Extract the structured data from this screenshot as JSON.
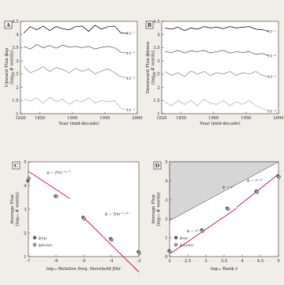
{
  "chart_data": [
    {
      "panel": "A",
      "type": "line",
      "xlabel": "Year (mid-decade)",
      "ylabel": [
        "Upward Flux ϕup",
        "(log₁₀ # words)"
      ],
      "xlim": [
        1820,
        2000
      ],
      "ylim": [
        1,
        4.5
      ],
      "xticks": [
        1820,
        1850,
        1900,
        1950,
        2000
      ],
      "yticks": [
        1,
        1.5,
        2,
        2.5,
        3,
        3.5,
        4,
        4.5
      ],
      "x": [
        1825,
        1835,
        1845,
        1855,
        1865,
        1875,
        1885,
        1895,
        1905,
        1915,
        1925,
        1935,
        1945,
        1955,
        1965,
        1975,
        1985
      ],
      "series": [
        {
          "annotation": "10⁻⁷",
          "color": "#000000",
          "values": [
            4.05,
            4.3,
            4.18,
            4.32,
            4.15,
            4.3,
            4.22,
            4.18,
            4.3,
            4.32,
            4.12,
            4.35,
            4.2,
            4.3,
            4.32,
            4.05,
            4.05
          ]
        },
        {
          "annotation": "10⁻⁶",
          "color": "#555555",
          "values": [
            3.55,
            3.45,
            3.62,
            3.5,
            3.58,
            3.48,
            3.6,
            3.52,
            3.55,
            3.5,
            3.55,
            3.45,
            3.52,
            3.55,
            3.5,
            3.32,
            3.3
          ]
        },
        {
          "annotation": "10⁻⁵",
          "color": "#8a8a8a",
          "values": [
            2.8,
            2.55,
            2.65,
            2.78,
            2.6,
            2.75,
            2.68,
            2.55,
            2.72,
            2.6,
            2.7,
            2.5,
            2.62,
            2.7,
            2.55,
            2.4,
            2.35
          ]
        },
        {
          "annotation": "10⁻⁴",
          "color": "#b0b0b0",
          "values": [
            1.55,
            1.48,
            1.6,
            1.4,
            1.62,
            1.45,
            1.55,
            1.35,
            1.5,
            1.45,
            1.6,
            1.4,
            1.5,
            1.45,
            1.5,
            1.2,
            1.15
          ]
        }
      ]
    },
    {
      "panel": "B",
      "type": "line",
      "xlabel": "Year (mid-decade)",
      "ylabel": [
        "Downward Flux ϕdown",
        "(log₁₀ # words)"
      ],
      "xlim": [
        1820,
        2000
      ],
      "ylim": [
        1,
        4.5
      ],
      "xticks": [
        1820,
        1850,
        1900,
        1950,
        2000
      ],
      "yticks": [
        1,
        1.5,
        2,
        2.5,
        3,
        3.5,
        4,
        4.5
      ],
      "x": [
        1825,
        1835,
        1845,
        1855,
        1865,
        1875,
        1885,
        1895,
        1905,
        1915,
        1925,
        1935,
        1945,
        1955,
        1965,
        1975,
        1985
      ],
      "series": [
        {
          "annotation": "10⁻⁷",
          "color": "#000000",
          "values": [
            4.25,
            4.2,
            4.28,
            4.15,
            4.25,
            4.2,
            4.3,
            4.25,
            4.28,
            4.22,
            4.3,
            4.25,
            4.28,
            4.3,
            4.2,
            4.18,
            4.12
          ]
        },
        {
          "annotation": "10⁻⁶",
          "color": "#555555",
          "values": [
            3.35,
            3.32,
            3.4,
            3.3,
            3.38,
            3.35,
            3.4,
            3.3,
            3.35,
            3.4,
            3.3,
            3.35,
            3.32,
            3.35,
            3.25,
            3.28,
            3.2
          ]
        },
        {
          "annotation": "10⁻⁵",
          "color": "#8a8a8a",
          "values": [
            2.6,
            2.45,
            2.55,
            2.4,
            2.62,
            2.5,
            2.6,
            2.45,
            2.55,
            2.5,
            2.6,
            2.45,
            2.55,
            2.5,
            2.6,
            2.45,
            2.4
          ]
        },
        {
          "annotation": "10⁻⁴",
          "color": "#b0b0b0",
          "values": [
            1.45,
            1.3,
            1.5,
            1.35,
            1.5,
            1.3,
            1.55,
            1.4,
            1.35,
            1.5,
            1.3,
            1.45,
            1.35,
            1.5,
            1.3,
            1.2,
            1.1
          ]
        }
      ]
    },
    {
      "panel": "C",
      "type": "scatter",
      "xlabel": "log₁₀ Relative freq. threshold ƒthr",
      "ylabel": [
        "Average Flux",
        "(log₁₀ # words)"
      ],
      "xlim": [
        -7,
        -3
      ],
      "ylim": [
        1,
        5
      ],
      "xticks": [
        -7,
        -6,
        -5,
        -4,
        -3
      ],
      "yticks": [
        1,
        2,
        3,
        4,
        5
      ],
      "series": [
        {
          "name": "ϕup",
          "color": "#666666",
          "x": [
            -7,
            -6,
            -5,
            -4,
            -3
          ],
          "y": [
            4.2,
            3.55,
            2.65,
            1.75,
            1.2
          ]
        },
        {
          "name": "ϕdown",
          "color": "#999999",
          "x": [
            -7,
            -6,
            -5,
            -4,
            -3
          ],
          "y": [
            4.3,
            3.55,
            2.6,
            1.7,
            1.15
          ]
        }
      ],
      "fits": [
        {
          "label": "ϕ ∼ ƒthr⁻⁰·⁷⁷",
          "x": [
            -7,
            -5.5
          ],
          "y": [
            4.6,
            3.45
          ],
          "color": "#c0143c"
        },
        {
          "label": "ϕ ∼ ƒthr⁻¹·¹⁶",
          "x": [
            -5,
            -3
          ],
          "y": [
            2.65,
            0.35
          ],
          "color": "#c0143c"
        }
      ]
    },
    {
      "panel": "D",
      "type": "scatter",
      "xlabel": "log₁₀ Rank r",
      "ylabel": [
        "Average Flux",
        "(log₁₀ # words)"
      ],
      "xlim": [
        2,
        5
      ],
      "ylim": [
        0,
        5
      ],
      "xticks": [
        2,
        2.5,
        3,
        3.5,
        4,
        4.5,
        5
      ],
      "yticks": [
        0,
        1,
        2,
        3,
        4,
        5
      ],
      "series": [
        {
          "name": "ϕup",
          "color": "#666666",
          "x": [
            2,
            2.9,
            3.6,
            4.4,
            5
          ],
          "y": [
            0.3,
            1.4,
            2.55,
            3.45,
            4.25
          ]
        },
        {
          "name": "ϕdown",
          "color": "#999999",
          "x": [
            2,
            2.9,
            3.6,
            4.4,
            5
          ],
          "y": [
            0.25,
            1.35,
            2.5,
            3.4,
            4.2
          ]
        }
      ],
      "shaded_region": {
        "label": "ϕ = r"
      },
      "fits": [
        {
          "label": "ϕ ∼ r¹·²³",
          "x": [
            2.05,
            3.85
          ],
          "y": [
            0.2,
            2.55
          ],
          "color": "#c0143c"
        },
        {
          "label": "ϕ ∼ r¹·⁴⁷",
          "x": [
            3.85,
            5
          ],
          "y": [
            2.6,
            4.35
          ],
          "color": "#c0143c"
        }
      ]
    }
  ]
}
